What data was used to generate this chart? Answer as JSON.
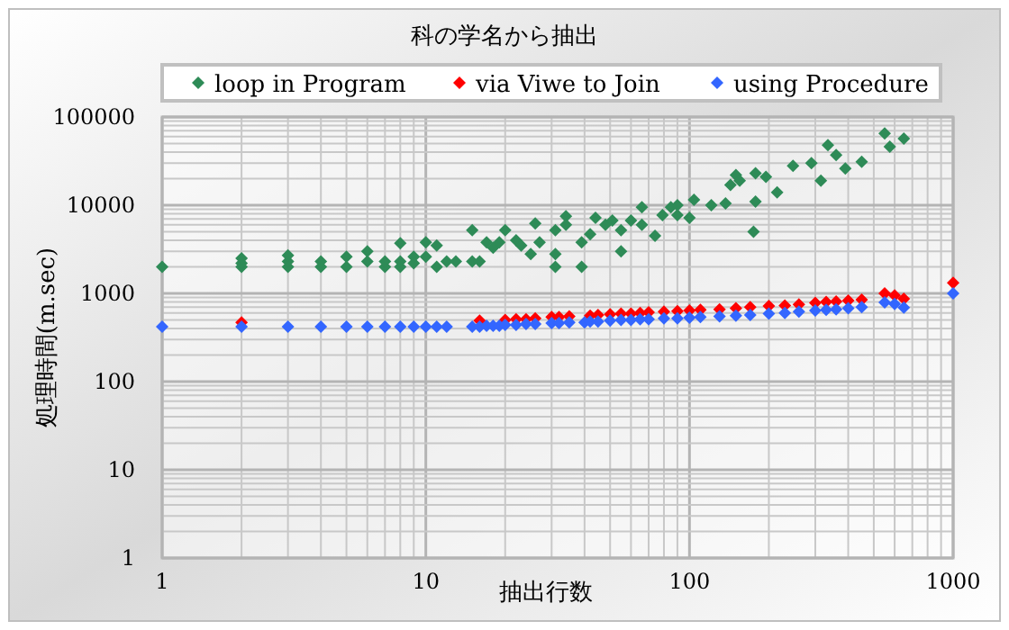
{
  "chart_data": {
    "type": "scatter",
    "title": "科の学名から抽出",
    "xlabel": "抽出行数",
    "ylabel": "処理時間(m.sec)",
    "log": "xy",
    "grid": true,
    "legend": "top",
    "marker": "diamond",
    "xlim": [
      1,
      1000
    ],
    "xticks": [
      1,
      10,
      100,
      1000
    ],
    "ylim": [
      1,
      100000
    ],
    "yticks": [
      1,
      10,
      100,
      1000,
      10000,
      100000
    ],
    "series": [
      {
        "name": "loop in Program",
        "color": "#2e8b57",
        "x": [
          1,
          2,
          2,
          2,
          3,
          3,
          3,
          4,
          4,
          5,
          5,
          6,
          6,
          7,
          7,
          8,
          8,
          8,
          9,
          9,
          10,
          10,
          11,
          11,
          12,
          13,
          15,
          15,
          16,
          17,
          18,
          19,
          20,
          22,
          23,
          25,
          26,
          27,
          31,
          31,
          31,
          34,
          34,
          39,
          39,
          42,
          44,
          48,
          51,
          55,
          55,
          60,
          66,
          66,
          74,
          79,
          85,
          90,
          90,
          100,
          104,
          121,
          137,
          143,
          150,
          155,
          175,
          178,
          178,
          195,
          215,
          247,
          290,
          315,
          335,
          360,
          390,
          450,
          550,
          575,
          650
        ],
        "values": [
          2000,
          2000,
          2200,
          2500,
          2000,
          2300,
          2700,
          2000,
          2300,
          2000,
          2600,
          2300,
          3000,
          2000,
          2300,
          2000,
          2300,
          3700,
          2200,
          2600,
          2600,
          3800,
          3500,
          2000,
          2300,
          2300,
          5200,
          2300,
          2300,
          3800,
          3300,
          3800,
          5200,
          4000,
          3500,
          2800,
          6200,
          3800,
          5200,
          2800,
          2000,
          7500,
          6000,
          3800,
          2000,
          4700,
          7200,
          6000,
          6700,
          3000,
          5200,
          6700,
          6000,
          9500,
          4500,
          7700,
          9500,
          10000,
          7700,
          7200,
          11500,
          10000,
          10500,
          17000,
          22000,
          19000,
          5000,
          23000,
          11000,
          21000,
          14000,
          28000,
          30000,
          19000,
          48000,
          37000,
          26000,
          31000,
          65000,
          46000,
          57000
        ]
      },
      {
        "name": "via Viwe to Join",
        "color": "#ff0000",
        "x": [
          2,
          16,
          20,
          22,
          24,
          26,
          30,
          32,
          35,
          42,
          45,
          50,
          55,
          60,
          65,
          70,
          80,
          90,
          100,
          110,
          130,
          150,
          170,
          200,
          230,
          260,
          300,
          330,
          360,
          400,
          450,
          550,
          600,
          650,
          1000
        ],
        "values": [
          470,
          490,
          500,
          510,
          510,
          520,
          540,
          540,
          550,
          560,
          570,
          580,
          590,
          590,
          600,
          610,
          620,
          630,
          640,
          650,
          660,
          680,
          700,
          720,
          730,
          750,
          780,
          800,
          810,
          830,
          850,
          1000,
          950,
          870,
          1320
        ]
      },
      {
        "name": "using Procedure",
        "color": "#3366ff",
        "x": [
          1,
          2,
          3,
          4,
          5,
          6,
          7,
          8,
          9,
          10,
          11,
          12,
          15,
          16,
          17,
          18,
          19,
          20,
          22,
          24,
          26,
          30,
          32,
          35,
          40,
          42,
          45,
          50,
          55,
          60,
          65,
          70,
          80,
          90,
          100,
          110,
          130,
          150,
          170,
          200,
          230,
          260,
          300,
          330,
          360,
          400,
          450,
          550,
          600,
          650,
          1000
        ],
        "values": [
          420,
          420,
          420,
          420,
          420,
          420,
          420,
          420,
          420,
          420,
          420,
          420,
          420,
          420,
          430,
          430,
          430,
          440,
          440,
          450,
          450,
          460,
          460,
          470,
          470,
          480,
          480,
          490,
          500,
          500,
          510,
          510,
          520,
          520,
          530,
          540,
          550,
          560,
          570,
          590,
          600,
          620,
          640,
          650,
          660,
          680,
          700,
          790,
          760,
          690,
          1000
        ]
      }
    ]
  }
}
